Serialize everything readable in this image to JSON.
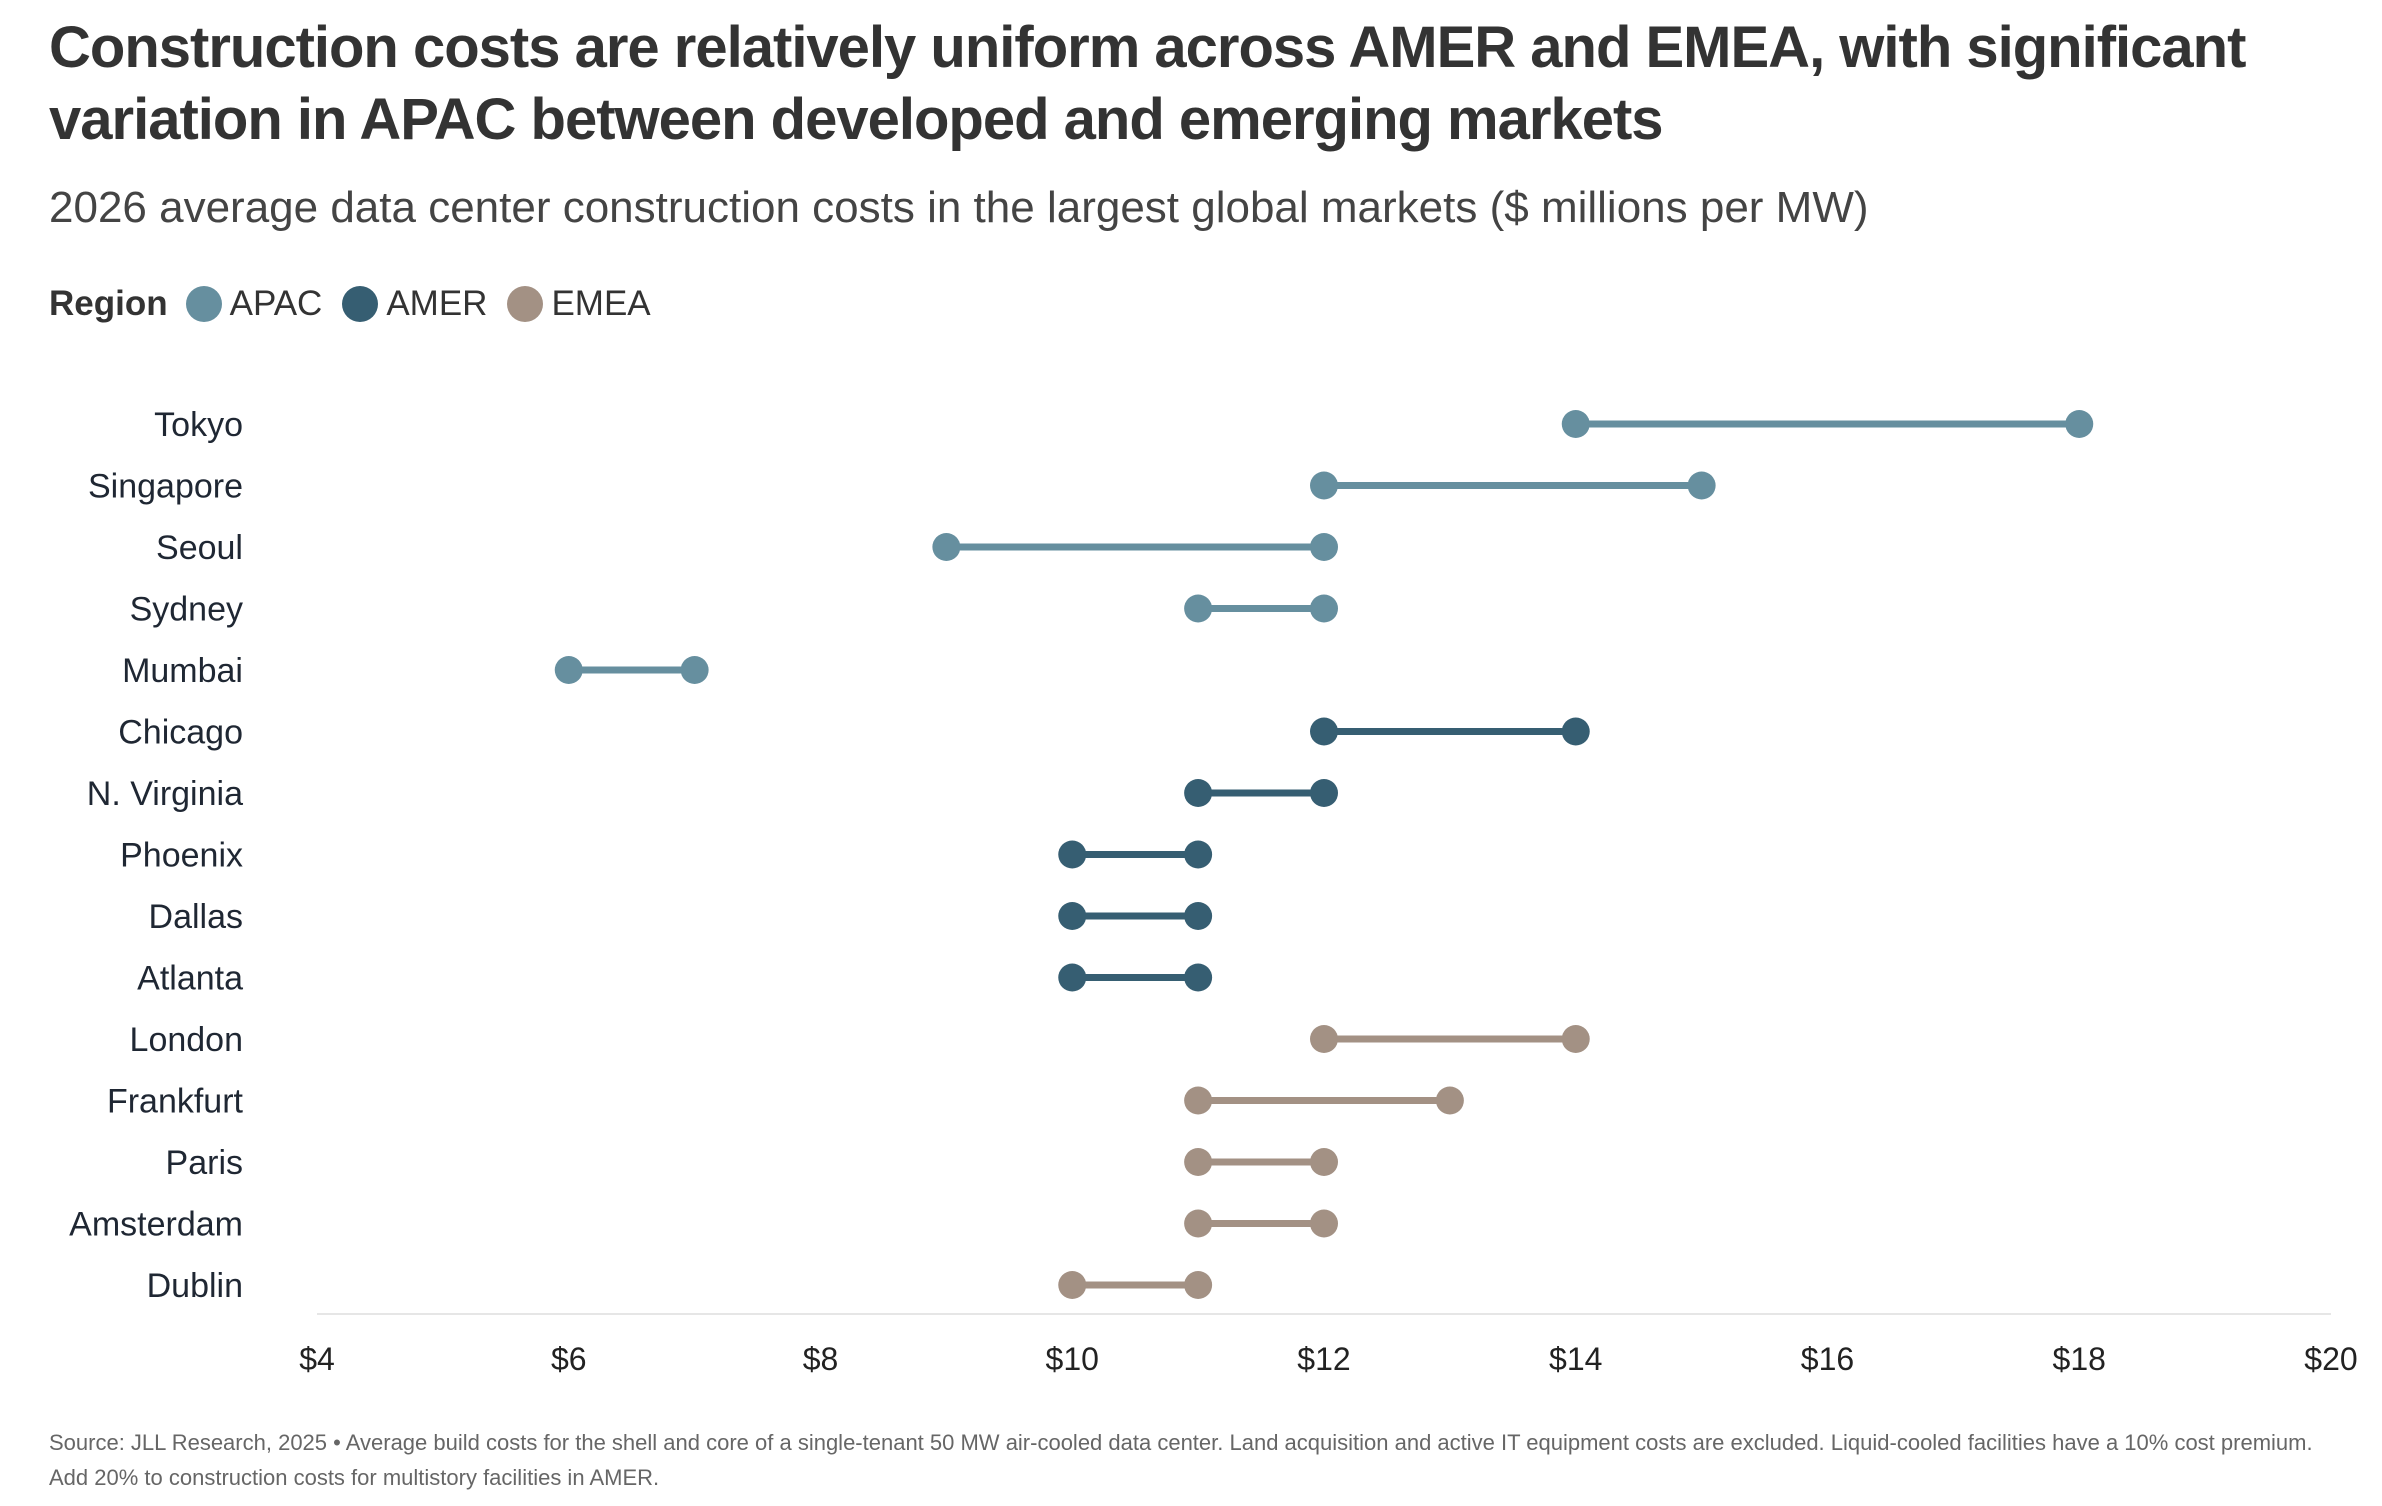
{
  "title": "Construction costs are relatively uniform across AMER and EMEA, with significant variation in APAC between developed and emerging markets",
  "subtitle": "2026 average data center construction costs in the largest global markets ($ millions per MW)",
  "legend": {
    "label": "Region",
    "items": [
      {
        "name": "APAC",
        "color": "#668f9f"
      },
      {
        "name": "AMER",
        "color": "#365e72"
      },
      {
        "name": "EMEA",
        "color": "#a39184"
      }
    ]
  },
  "chart_data": {
    "type": "dumbbell",
    "title": "2026 average data center construction costs in the largest global markets ($ millions per MW)",
    "xlabel": "",
    "ylabel": "",
    "xlim": [
      4,
      20
    ],
    "x_ticks": [
      4,
      6,
      8,
      10,
      12,
      14,
      16,
      18,
      20
    ],
    "x_tick_labels": [
      "$4",
      "$6",
      "$8",
      "$10",
      "$12",
      "$14",
      "$16",
      "$18",
      "$20"
    ],
    "legend_position": "top-left",
    "grid": false,
    "series": [
      {
        "city": "Tokyo",
        "region": "APAC",
        "low": 14,
        "high": 18
      },
      {
        "city": "Singapore",
        "region": "APAC",
        "low": 12,
        "high": 15
      },
      {
        "city": "Seoul",
        "region": "APAC",
        "low": 9,
        "high": 12
      },
      {
        "city": "Sydney",
        "region": "APAC",
        "low": 11,
        "high": 12
      },
      {
        "city": "Mumbai",
        "region": "APAC",
        "low": 6,
        "high": 7
      },
      {
        "city": "Chicago",
        "region": "AMER",
        "low": 12,
        "high": 14
      },
      {
        "city": "N. Virginia",
        "region": "AMER",
        "low": 11,
        "high": 12
      },
      {
        "city": "Phoenix",
        "region": "AMER",
        "low": 10,
        "high": 11
      },
      {
        "city": "Dallas",
        "region": "AMER",
        "low": 10,
        "high": 11
      },
      {
        "city": "Atlanta",
        "region": "AMER",
        "low": 10,
        "high": 11
      },
      {
        "city": "London",
        "region": "EMEA",
        "low": 12,
        "high": 14
      },
      {
        "city": "Frankfurt",
        "region": "EMEA",
        "low": 11,
        "high": 13
      },
      {
        "city": "Paris",
        "region": "EMEA",
        "low": 11,
        "high": 12
      },
      {
        "city": "Amsterdam",
        "region": "EMEA",
        "low": 11,
        "high": 12
      },
      {
        "city": "Dublin",
        "region": "EMEA",
        "low": 10,
        "high": 11
      }
    ]
  },
  "footer": "Source: JLL Research, 2025 • Average build costs for the shell and core of a single-tenant 50 MW air-cooled data center. Land acquisition and active IT equipment costs are excluded. Liquid-cooled facilities have a 10% cost premium. Add 20% to construction costs for multistory facilities in AMER."
}
